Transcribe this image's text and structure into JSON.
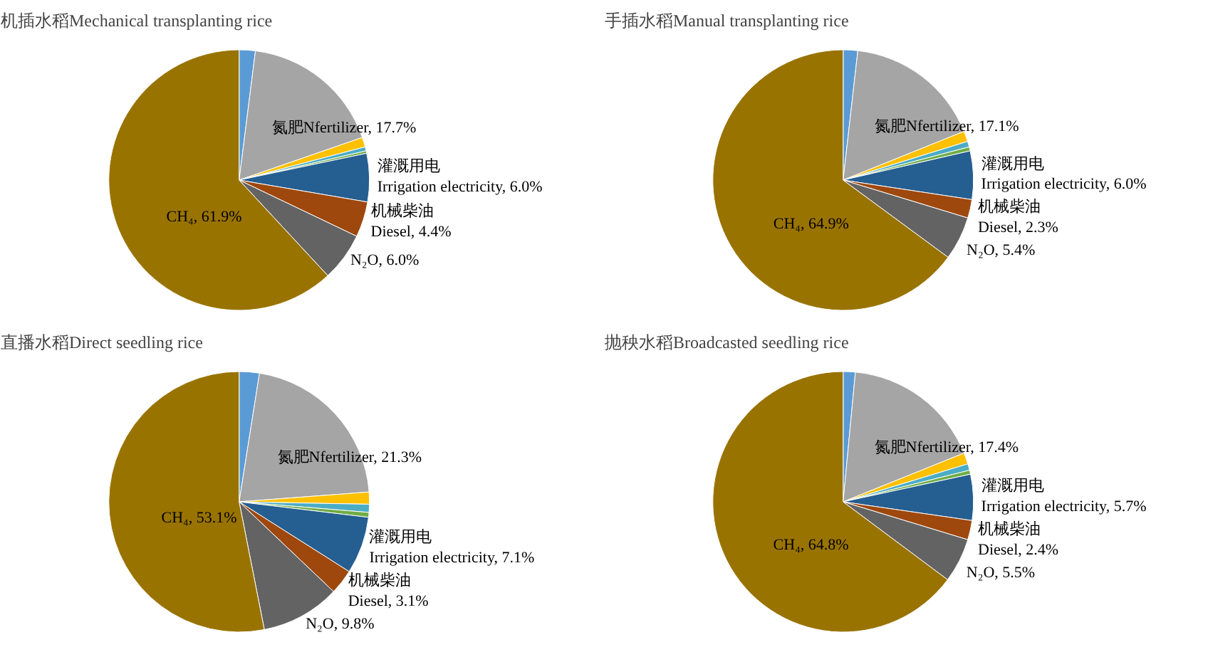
{
  "chart_data": [
    {
      "type": "pie",
      "title": "机插水稻Mechanical transplanting rice",
      "categories": [
        null,
        "氮肥Nfertilizer",
        null,
        null,
        null,
        "灌溉用电Irrigation electricity",
        "机械柴油Diesel",
        "N₂O",
        "CH₄"
      ],
      "values": [
        2.0,
        17.7,
        1.2,
        0.5,
        0.3,
        6.0,
        4.4,
        6.0,
        61.9
      ],
      "value_labels": [
        null,
        "17.7%",
        null,
        null,
        null,
        "6.0%",
        "4.4%",
        "6.0%",
        "61.9%"
      ],
      "colors": [
        "#5b9bd5",
        "#a5a5a5",
        "#ffc000",
        "#4bacc6",
        "#70ad47",
        "#255e91",
        "#9e480e",
        "#636363",
        "#997300"
      ]
    },
    {
      "type": "pie",
      "title": "手插水稻Manual transplanting rice",
      "categories": [
        null,
        "氮肥Nfertilizer",
        null,
        null,
        null,
        "灌溉用电Irrigation electricity",
        "机械柴油Diesel",
        "N₂O",
        "CH₄"
      ],
      "values": [
        1.8,
        17.1,
        1.3,
        0.7,
        0.5,
        6.0,
        2.3,
        5.4,
        64.9
      ],
      "value_labels": [
        null,
        "17.1%",
        null,
        null,
        null,
        "6.0%",
        "2.3%",
        "5.4%",
        "64.9%"
      ],
      "colors": [
        "#5b9bd5",
        "#a5a5a5",
        "#ffc000",
        "#4bacc6",
        "#70ad47",
        "#255e91",
        "#9e480e",
        "#636363",
        "#997300"
      ]
    },
    {
      "type": "pie",
      "title": "直播水稻Direct seedling rice",
      "categories": [
        null,
        "氮肥Nfertilizer",
        null,
        null,
        null,
        "灌溉用电Irrigation electricity",
        "机械柴油Diesel",
        "N₂O",
        "CH₄"
      ],
      "values": [
        2.5,
        21.3,
        1.5,
        1.0,
        0.6,
        7.1,
        3.1,
        9.8,
        53.1
      ],
      "value_labels": [
        null,
        "21.3%",
        null,
        null,
        null,
        "7.1%",
        "3.1%",
        "9.8%",
        "53.1%"
      ],
      "colors": [
        "#5b9bd5",
        "#a5a5a5",
        "#ffc000",
        "#4bacc6",
        "#70ad47",
        "#255e91",
        "#9e480e",
        "#636363",
        "#997300"
      ]
    },
    {
      "type": "pie",
      "title": "抛秧水稻Broadcasted seedling rice",
      "categories": [
        null,
        "氮肥Nfertilizer",
        null,
        null,
        null,
        "灌溉用电Irrigation electricity",
        "机械柴油Diesel",
        "N₂O",
        "CH₄"
      ],
      "values": [
        1.5,
        17.4,
        1.4,
        0.8,
        0.5,
        5.7,
        2.4,
        5.5,
        64.8
      ],
      "value_labels": [
        null,
        "17.4%",
        null,
        null,
        null,
        "5.7%",
        "2.4%",
        "5.5%",
        "64.8%"
      ],
      "colors": [
        "#5b9bd5",
        "#a5a5a5",
        "#ffc000",
        "#4bacc6",
        "#70ad47",
        "#255e91",
        "#9e480e",
        "#636363",
        "#997300"
      ]
    }
  ]
}
